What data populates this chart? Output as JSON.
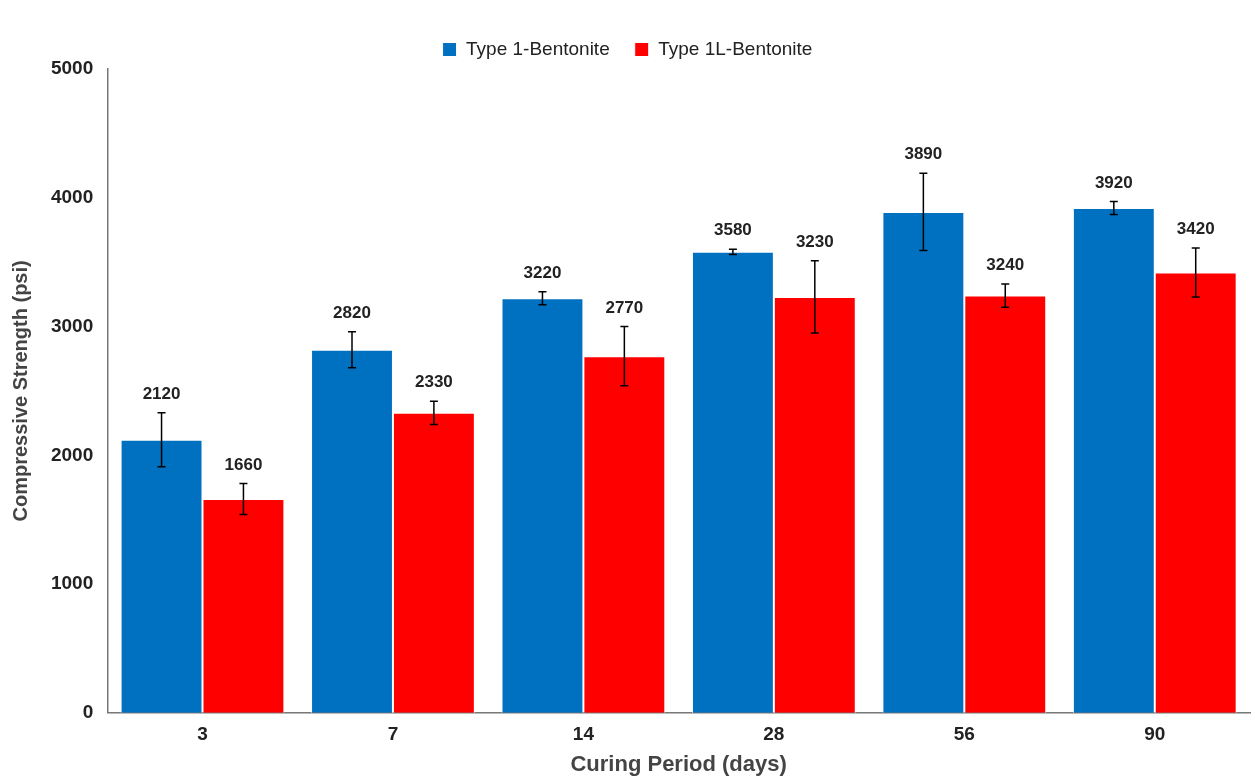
{
  "chart_data": {
    "type": "bar",
    "xlabel": "Curing Period (days)",
    "ylabel": "Compressive Strength (psi)",
    "categories": [
      "3",
      "7",
      "14",
      "28",
      "56",
      "90"
    ],
    "series": [
      {
        "name": "Type 1-Bentonite",
        "color": "#0070c0",
        "values": [
          2120,
          2820,
          3220,
          3580,
          3890,
          3920
        ],
        "errors": [
          210,
          140,
          50,
          20,
          300,
          50
        ]
      },
      {
        "name": "Type 1L-Bentonite",
        "color": "#ff0000",
        "values": [
          1660,
          2330,
          2770,
          3230,
          3240,
          3420
        ],
        "errors": [
          120,
          90,
          230,
          280,
          90,
          190
        ]
      }
    ],
    "ylim": [
      0,
      5000
    ],
    "yticks": [
      0,
      1000,
      2000,
      3000,
      4000,
      5000
    ],
    "grid": false,
    "legend": "top",
    "data_labels": true
  }
}
